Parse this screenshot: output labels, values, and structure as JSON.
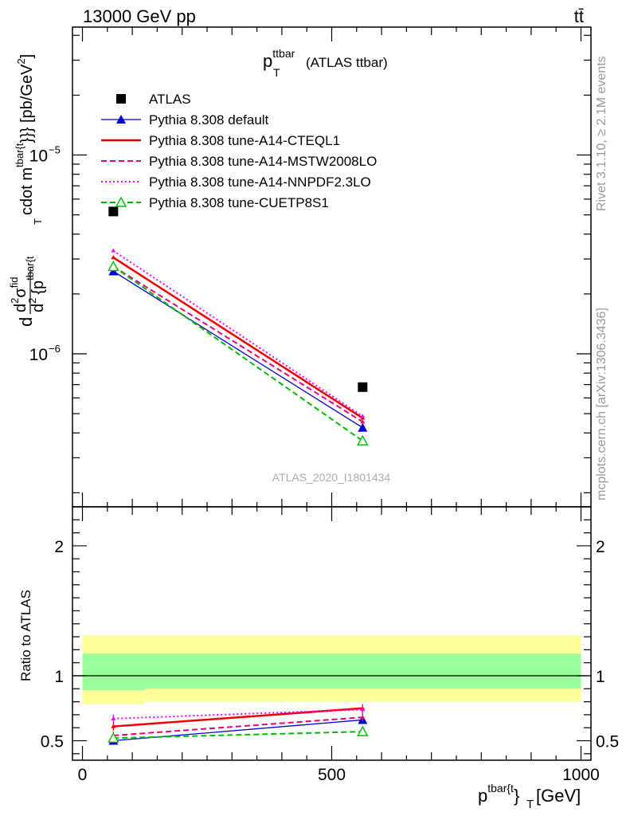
{
  "header": {
    "energy_label": "13000 GeV pp",
    "process_label": "tt̄"
  },
  "side_labels": {
    "rivet": "Rivet 3.1.10, ≥ 2.1M events",
    "mcplots": "mcplots.cern.ch [arXiv:1306.3436]"
  },
  "watermark": "ATLAS_2020_I1801434",
  "plot_title": {
    "main": "p",
    "sub": "T",
    "sup": "ttbar",
    "suffix": "(ATLAS ttbar)"
  },
  "ylabel_top": "d d²σ^{fid} / d² {p_T^{tbar{t}}} cdot m^{tbar{t}}}} [pb/GeV²]",
  "ylabel_top_parts": {
    "a": "d",
    "b": "d",
    "c": "2",
    "d": "σ",
    "e": "fid",
    "f": "d",
    "g": "2",
    "h": "{p",
    "i": "tbar{t",
    "j": "T",
    "k": "cdot m",
    "l": "tbar{t",
    "m": "}}} [pb/GeV",
    "n": "2",
    "o": "]"
  },
  "xlabel_parts": {
    "a": "p",
    "b": "tbar{t",
    "c": "}",
    "d": "T",
    "e": " [GeV]"
  },
  "ylabel_ratio": "Ratio to ATLAS",
  "legend": [
    {
      "label": "ATLAS",
      "color": "#000000",
      "marker": "square",
      "dash": "none"
    },
    {
      "label": "Pythia 8.308 default",
      "color": "#0000cc",
      "marker": "triangle",
      "dash": "solid"
    },
    {
      "label": "Pythia 8.308 tune-A14-CTEQL1",
      "color": "#ee0000",
      "marker": "none",
      "dash": "solid-thick"
    },
    {
      "label": "Pythia 8.308 tune-A14-MSTW2008LO",
      "color": "#e6007e",
      "marker": "none",
      "dash": "dashed"
    },
    {
      "label": "Pythia 8.308 tune-A14-NNPDF2.3LO",
      "color": "#ff00ff",
      "marker": "none",
      "dash": "dotted"
    },
    {
      "label": "Pythia 8.308 tune-CUETP8S1",
      "color": "#00bb00",
      "marker": "open-triangle",
      "dash": "dashed"
    }
  ],
  "axis_ticks": {
    "top_y": [
      "10",
      "−5",
      "10",
      "−6"
    ],
    "ratio_y": [
      "0.5",
      "1",
      "2"
    ],
    "ratio_y_right": [
      "0.5",
      "1",
      "2"
    ],
    "x": [
      "0",
      "500",
      "1000"
    ]
  },
  "chart_data": [
    {
      "type": "scatter",
      "panel": "main",
      "yscale": "log",
      "ylim": [
        1.7e-07,
        4.4e-05
      ],
      "xlim": [
        -20,
        1020
      ],
      "x": [
        62,
        562
      ],
      "series": [
        {
          "name": "ATLAS",
          "values": [
            5.2e-06,
            6.8e-07
          ]
        },
        {
          "name": "Pythia 8.308 default",
          "values": [
            2.6e-06,
            4.25e-07
          ]
        },
        {
          "name": "Pythia 8.308 tune-A14-CTEQL1",
          "values": [
            3.05e-06,
            4.75e-07
          ]
        },
        {
          "name": "Pythia 8.308 tune-A14-MSTW2008LO",
          "values": [
            2.75e-06,
            4.55e-07
          ]
        },
        {
          "name": "Pythia 8.308 tune-A14-NNPDF2.3LO",
          "values": [
            3.3e-06,
            4.85e-07
          ]
        },
        {
          "name": "Pythia 8.308 tune-CUETP8S1",
          "values": [
            2.75e-06,
            3.65e-07
          ]
        }
      ]
    },
    {
      "type": "line",
      "panel": "ratio",
      "ylim": [
        0.35,
        2.3
      ],
      "xlim": [
        -20,
        1020
      ],
      "x": [
        62,
        562
      ],
      "bands": {
        "inner_green": {
          "xrange": [
            0,
            1000
          ],
          "upper": 1.17,
          "lower_left": 0.89,
          "lower_right": 0.9,
          "split_x": 125
        },
        "outer_yellow": {
          "xrange": [
            0,
            1000
          ],
          "upper": 1.31,
          "lower_left": 0.78,
          "lower_right": 0.8,
          "split_x": 125
        }
      },
      "reference_line": 1.0,
      "series": [
        {
          "name": "Pythia 8.308 default",
          "values": [
            0.5,
            0.66
          ]
        },
        {
          "name": "Pythia 8.308 tune-A14-CTEQL1",
          "values": [
            0.61,
            0.75
          ]
        },
        {
          "name": "Pythia 8.308 tune-A14-MSTW2008LO",
          "values": [
            0.54,
            0.68
          ]
        },
        {
          "name": "Pythia 8.308 tune-A14-NNPDF2.3LO",
          "values": [
            0.67,
            0.74
          ]
        },
        {
          "name": "Pythia 8.308 tune-CUETP8S1",
          "values": [
            0.52,
            0.57
          ]
        }
      ]
    }
  ],
  "colors": {
    "green_band": "#99ff99",
    "yellow_band": "#ffff99",
    "frame": "#000000"
  }
}
